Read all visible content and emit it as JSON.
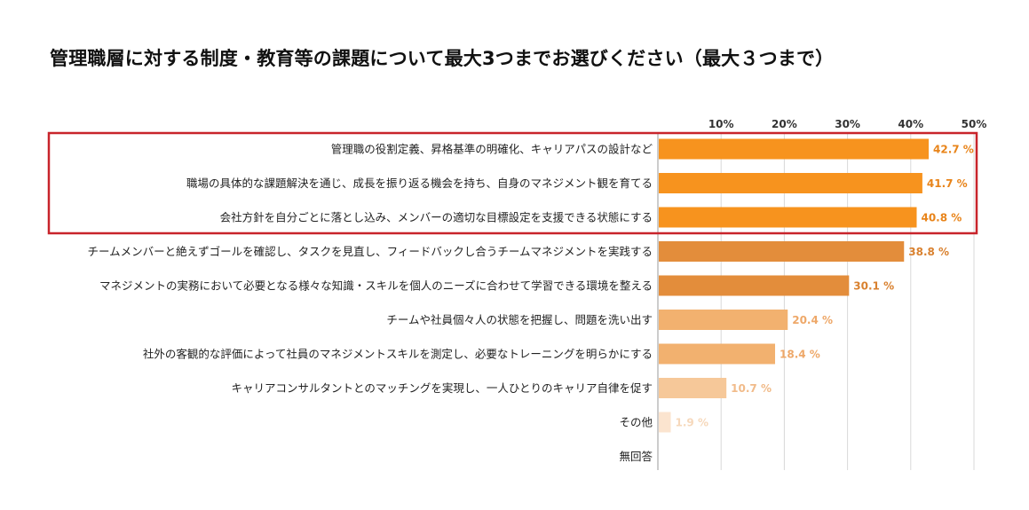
{
  "chart_data": {
    "type": "bar",
    "orientation": "horizontal",
    "title": "管理職層に対する制度・教育等の課題について最大3つまでお選びください（最大３つまで）",
    "xlim": [
      0,
      50
    ],
    "ticks": [
      "10%",
      "20%",
      "30%",
      "40%",
      "50%"
    ],
    "tick_values": [
      10,
      20,
      30,
      40,
      50
    ],
    "grid": true,
    "highlight": {
      "categories_index": [
        0,
        1,
        2
      ],
      "color": "#c8242b"
    },
    "categories": [
      "管理職の役割定義、昇格基準の明確化、キャリアパスの設計など",
      "職場の具体的な課題解決を通じ、成長を振り返る機会を持ち、自身のマネジメント観を育てる",
      "会社方針を自分ごとに落とし込み、メンバーの適切な目標設定を支援できる状態にする",
      "チームメンバーと絶えずゴールを確認し、タスクを見直し、フィードバックし合うチームマネジメントを実践する",
      "マネジメントの実務において必要となる様々な知識・スキルを個人のニーズに合わせて学習できる環境を整える",
      "チームや社員個々人の状態を把握し、問題を洗い出す",
      "社外の客観的な評価によって社員のマネジメントスキルを測定し、必要なトレーニングを明らかにする",
      "キャリアコンサルタントとのマッチングを実現し、一人ひとりのキャリア自律を促す",
      "その他",
      "無回答"
    ],
    "values": [
      42.7,
      41.7,
      40.8,
      38.8,
      30.1,
      20.4,
      18.4,
      10.7,
      1.9,
      null
    ],
    "value_labels": [
      "42.7 %",
      "41.7 %",
      "40.8 %",
      "38.8 %",
      "30.1 %",
      "20.4 %",
      "18.4 %",
      "10.7 %",
      "1.9 %",
      ""
    ],
    "bar_colors": [
      "#f7931e",
      "#f7931e",
      "#f7931e",
      "#e38d3b",
      "#e38d3b",
      "#f2b16f",
      "#f2b16f",
      "#f6c899",
      "#fbe4cf",
      "#ffffff"
    ],
    "label_colors": [
      "#e8841a",
      "#e8841a",
      "#e8841a",
      "#d9812f",
      "#d9812f",
      "#eea869",
      "#eea869",
      "#f1bb8a",
      "#f6d8bb",
      "#ffffff"
    ]
  }
}
